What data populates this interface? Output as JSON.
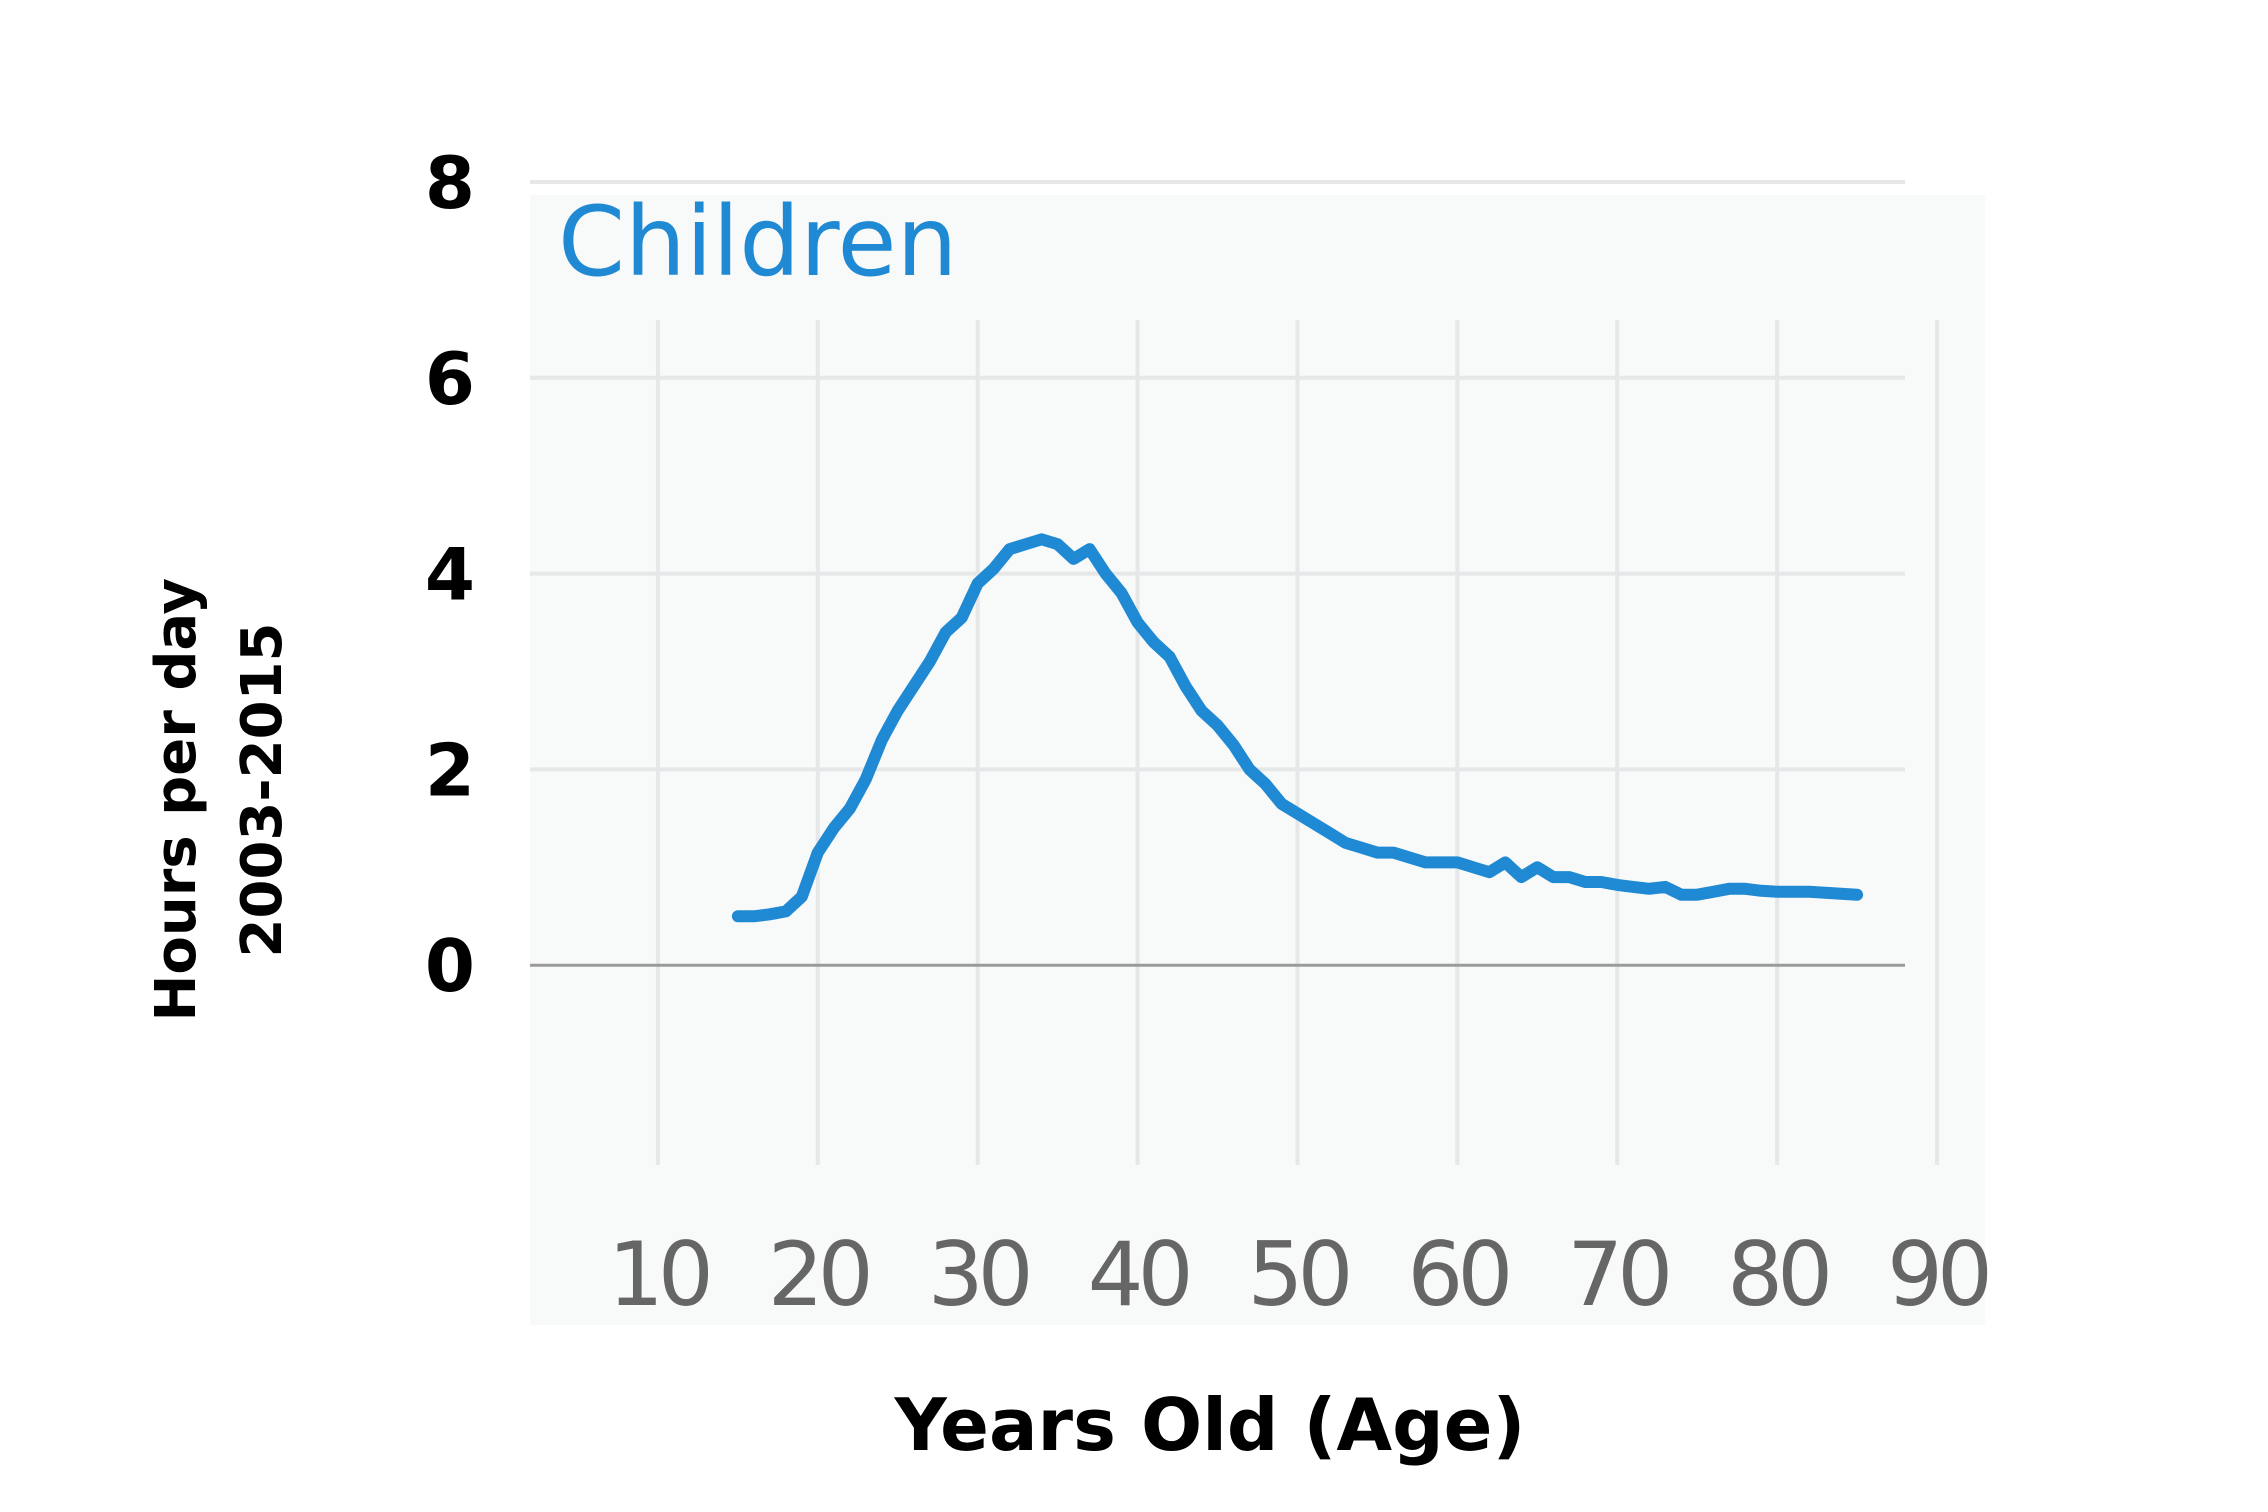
{
  "chart_data": {
    "type": "line",
    "title": "Children",
    "xlabel": "Years Old (Age)",
    "ylabel_lines": [
      "Hours per day",
      "2003-2015"
    ],
    "xlim": [
      2,
      93
    ],
    "ylim": [
      -2,
      8
    ],
    "xticks": [
      10,
      20,
      30,
      40,
      50,
      60,
      70,
      80,
      90
    ],
    "yticks": [
      0,
      2,
      4,
      6,
      8
    ],
    "grid": true,
    "colors": {
      "line": "#1f8ad3",
      "title": "#1f8ad3"
    },
    "series": [
      {
        "x": [
          15,
          16,
          17,
          18,
          19,
          20,
          21,
          22,
          23,
          24,
          25,
          26,
          27,
          28,
          29,
          30,
          31,
          32,
          33,
          34,
          35,
          36,
          37,
          38,
          39,
          40,
          41,
          42,
          43,
          44,
          45,
          46,
          47,
          48,
          49,
          50,
          51,
          52,
          53,
          54,
          55,
          56,
          57,
          58,
          59,
          60,
          61,
          62,
          63,
          64,
          65,
          66,
          67,
          68,
          69,
          70,
          71,
          72,
          73,
          74,
          75,
          76,
          77,
          78,
          79,
          80,
          81,
          82,
          83,
          84,
          85
        ],
        "values": [
          0.5,
          0.5,
          0.52,
          0.55,
          0.7,
          1.15,
          1.4,
          1.6,
          1.9,
          2.3,
          2.6,
          2.85,
          3.1,
          3.4,
          3.55,
          3.9,
          4.05,
          4.25,
          4.3,
          4.35,
          4.3,
          4.15,
          4.25,
          4.0,
          3.8,
          3.5,
          3.3,
          3.15,
          2.85,
          2.6,
          2.45,
          2.25,
          2.0,
          1.85,
          1.65,
          1.55,
          1.45,
          1.35,
          1.25,
          1.2,
          1.15,
          1.15,
          1.1,
          1.05,
          1.05,
          1.05,
          1.0,
          0.95,
          1.05,
          0.9,
          1.0,
          0.9,
          0.9,
          0.85,
          0.85,
          0.82,
          0.8,
          0.78,
          0.8,
          0.72,
          0.72,
          0.75,
          0.78,
          0.78,
          0.76,
          0.75,
          0.75,
          0.75,
          0.74,
          0.73,
          0.72
        ]
      }
    ]
  }
}
